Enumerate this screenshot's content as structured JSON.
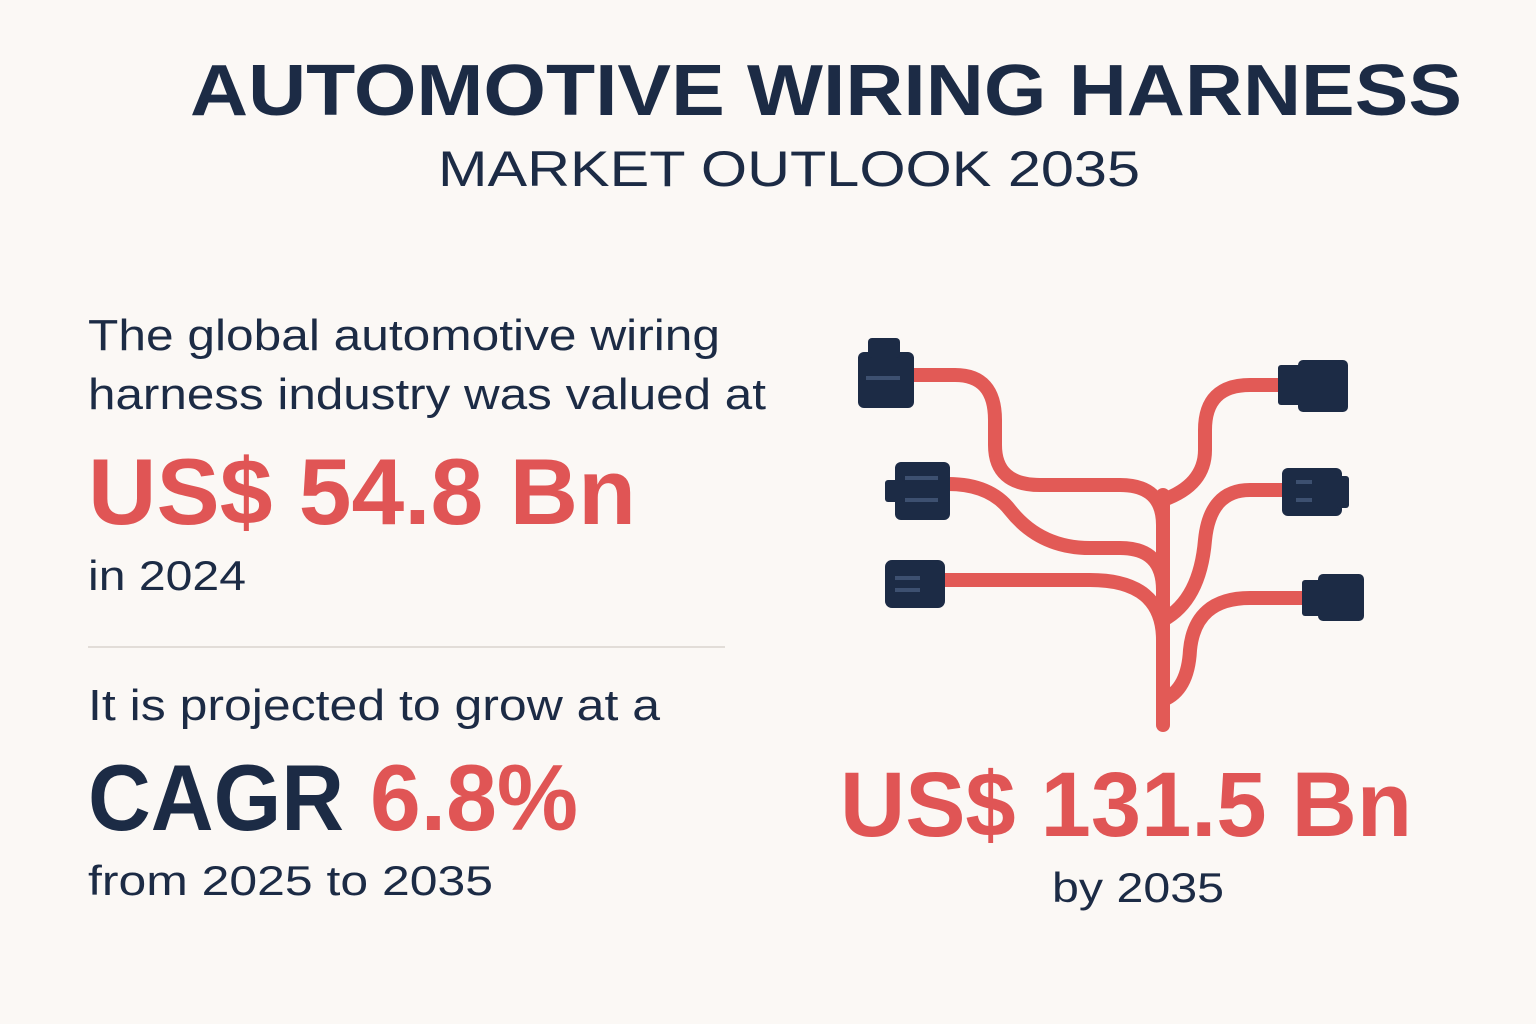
{
  "header": {
    "title": "AUTOMOTIVE WIRING HARNESS",
    "subtitle": "MARKET OUTLOOK 2035"
  },
  "current": {
    "intro_lines": [
      "The global automotive wiring",
      "harness industry was valued at"
    ],
    "value": "US$ 54.8 Bn",
    "year": "in 2024"
  },
  "growth": {
    "intro": "It is projected to grow at a",
    "label": "CAGR",
    "rate": "6.8%",
    "period": "from 2025 to 2035"
  },
  "forecast": {
    "value": "US$ 131.5 Bn",
    "year": "by 2035"
  }
}
